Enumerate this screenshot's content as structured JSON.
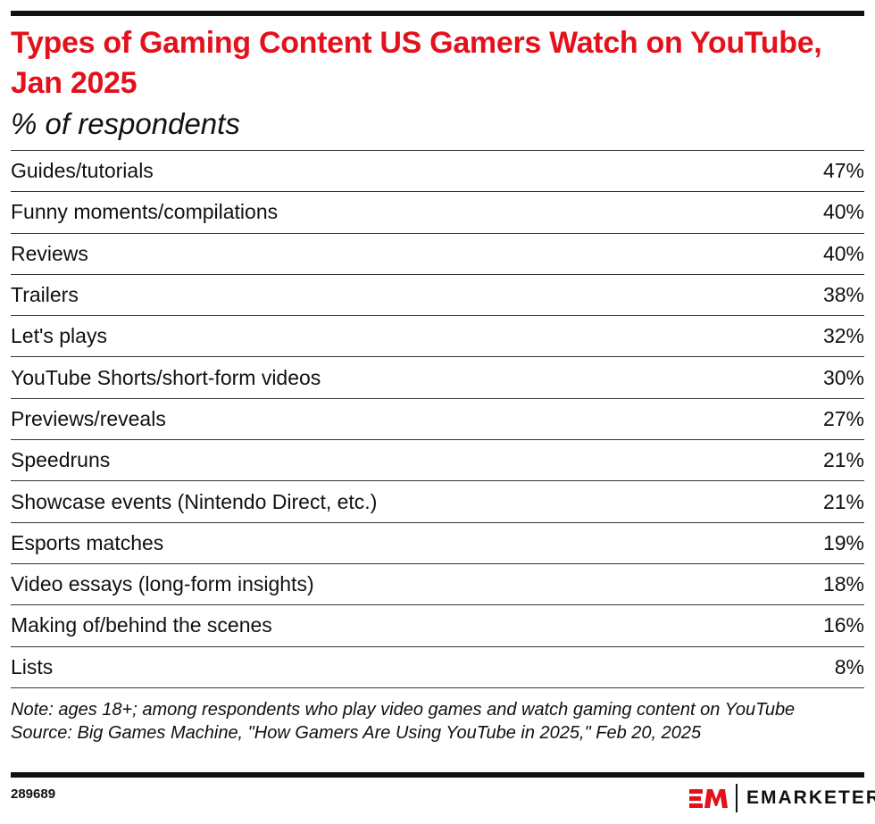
{
  "chart_data": {
    "type": "table",
    "title": "Types of Gaming Content US Gamers Watch on YouTube, Jan 2025",
    "subtitle": "% of respondents",
    "rows": [
      {
        "label": "Guides/tutorials",
        "value": "47%"
      },
      {
        "label": "Funny moments/compilations",
        "value": "40%"
      },
      {
        "label": "Reviews",
        "value": "40%"
      },
      {
        "label": "Trailers",
        "value": "38%"
      },
      {
        "label": "Let's plays",
        "value": "32%"
      },
      {
        "label": "YouTube Shorts/short-form videos",
        "value": "30%"
      },
      {
        "label": "Previews/reveals",
        "value": "27%"
      },
      {
        "label": "Speedruns",
        "value": "21%"
      },
      {
        "label": "Showcase events (Nintendo Direct, etc.)",
        "value": "21%"
      },
      {
        "label": "Esports matches",
        "value": "19%"
      },
      {
        "label": "Video essays (long-form insights)",
        "value": "18%"
      },
      {
        "label": "Making of/behind the scenes",
        "value": "16%"
      },
      {
        "label": "Lists",
        "value": "8%"
      }
    ]
  },
  "notes": {
    "note": "Note: ages 18+; among respondents who play video games and watch gaming content on YouTube",
    "source": "Source: Big Games Machine, \"How Gamers Are Using YouTube in 2025,\" Feb 20, 2025"
  },
  "footer": {
    "chart_id": "289689",
    "brand": "EMARKETER",
    "brand_color": "#e3111b"
  }
}
